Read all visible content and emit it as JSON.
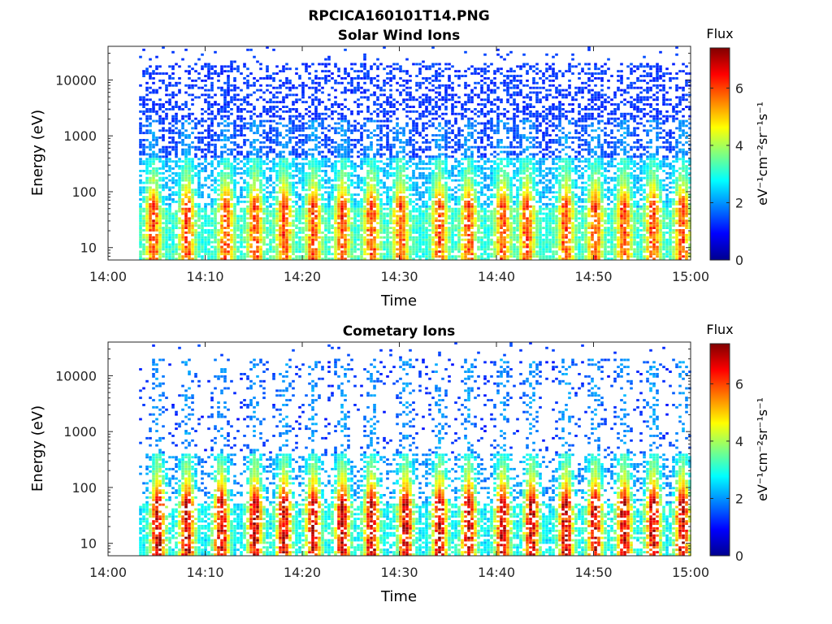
{
  "figure": {
    "filename": "RPCICA160101T14.PNG"
  },
  "chart_data": [
    {
      "type": "heatmap",
      "title": "Solar Wind Ions",
      "xlabel": "Time",
      "ylabel": "Energy (eV)",
      "x_ticks": [
        "14:00",
        "14:10",
        "14:20",
        "14:30",
        "14:40",
        "14:50",
        "15:00"
      ],
      "y_ticks": [
        "10",
        "100",
        "1000",
        "10000"
      ],
      "y_scale": "log",
      "ylim": [
        6,
        40000
      ],
      "xlim": [
        "14:00",
        "15:00"
      ],
      "data_start": "14:03",
      "colorbar": {
        "label_top": "Flux",
        "units": "eV⁻¹cm⁻²sr⁻¹s⁻¹",
        "ticks": [
          "0",
          "2",
          "4",
          "6"
        ],
        "range": [
          0,
          7.4
        ],
        "colormap": "jet"
      },
      "pulse_times_min": [
        4.5,
        8,
        12,
        15,
        18,
        21,
        24,
        27,
        30,
        34,
        37,
        40.5,
        43,
        47,
        50,
        53,
        56,
        59
      ],
      "pulse_peak_flux": 6.2,
      "background_flux_low_energy": 3.0,
      "background_flux_high_energy": 1.3
    },
    {
      "type": "heatmap",
      "title": "Cometary Ions",
      "xlabel": "Time",
      "ylabel": "Energy (eV)",
      "x_ticks": [
        "14:00",
        "14:10",
        "14:20",
        "14:30",
        "14:40",
        "14:50",
        "15:00"
      ],
      "y_ticks": [
        "10",
        "100",
        "1000",
        "10000"
      ],
      "y_scale": "log",
      "ylim": [
        6,
        40000
      ],
      "xlim": [
        "14:00",
        "15:00"
      ],
      "data_start": "14:03",
      "colorbar": {
        "label_top": "Flux",
        "units": "eV⁻¹cm⁻²sr⁻¹s⁻¹",
        "ticks": [
          "0",
          "2",
          "4",
          "6"
        ],
        "range": [
          0,
          7.4
        ],
        "colormap": "jet"
      },
      "pulse_times_min": [
        5,
        8,
        11.5,
        15,
        18,
        21,
        24,
        27,
        30.5,
        34,
        37,
        40.5,
        43.5,
        47,
        50,
        53,
        56,
        59
      ],
      "pulse_peak_flux": 7.2,
      "background_flux_low_energy": 2.6,
      "background_flux_high_energy": 1.2
    }
  ]
}
